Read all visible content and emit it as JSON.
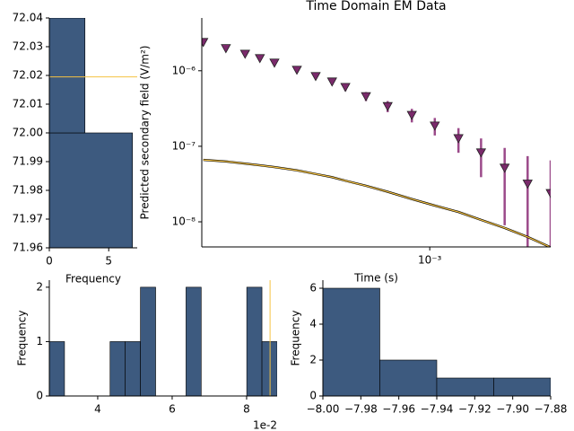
{
  "chart_data": [
    {
      "type": "histogram",
      "orientation": "horizontal",
      "bins": [
        71.96,
        72.0,
        72.04
      ],
      "counts": [
        7,
        3
      ],
      "color": "#3d5a7f",
      "xlim": [
        0,
        7.4
      ],
      "xticks": [
        0,
        5
      ],
      "ylim": [
        71.96,
        72.04
      ],
      "yticks": [
        71.96,
        71.97,
        71.98,
        71.99,
        {
          "value": 72,
          "label": "72.00"
        },
        72.01,
        72.02,
        72.03,
        72.04
      ],
      "xlabel": "Frequency",
      "reference_line": {
        "value": 72.0195,
        "color": "#f5c242"
      }
    },
    {
      "type": "line",
      "title": "Time Domain EM Data",
      "xlabel": "Time (s)",
      "ylabel": "Predicted secondary field (V/m²)",
      "log_x": true,
      "log_y": true,
      "x": [
        0.000172,
        0.000205,
        0.000238,
        0.000267,
        0.000299,
        0.000356,
        0.000412,
        0.000468,
        0.000519,
        0.000609,
        0.000721,
        0.00087,
        0.00104,
        0.00125,
        0.00149,
        0.00179,
        0.00214,
        0.00256
      ],
      "series": [
        {
          "color": "#7a2a6b",
          "error_color": "#9b4a8a",
          "marker": "triangle-down",
          "values": [
            2.4e-06,
            1.99e-06,
            1.68e-06,
            1.47e-06,
            1.28e-06,
            1.03e-06,
            8.5e-07,
            7.2e-07,
            6.1e-07,
            4.6e-07,
            3.4e-07,
            2.6e-07,
            1.88e-07,
            1.28e-07,
            8.3e-08,
            5.2e-08,
            3.2e-08,
            2.4e-08
          ],
          "errors": [
            1.6e-07,
            1.4e-07,
            1.24e-07,
            1.14e-07,
            1.04e-07,
            9.2e-08,
            8.3e-08,
            7.6e-08,
            7.1e-08,
            6.3e-08,
            5.7e-08,
            5.3e-08,
            4.9e-08,
            4.6e-08,
            4.4e-08,
            4.3e-08,
            4.2e-08,
            4.1e-08
          ]
        },
        {
          "color": "#f5c242",
          "values": [
            6.6e-08,
            6.3e-08,
            5.9e-08,
            5.6e-08,
            5.3e-08,
            4.8e-08,
            4.3e-08,
            3.9e-08,
            3.5e-08,
            3e-08,
            2.5e-08,
            2e-08,
            1.64e-08,
            1.35e-08,
            1.06e-08,
            8.3e-09,
            6.3e-09,
            4.6e-09
          ]
        }
      ],
      "xlim": [
        0.00017,
        0.00256
      ],
      "xticks": [
        {
          "value": 0.001,
          "label": "10⁻³"
        }
      ],
      "ylim": [
        4.65e-09,
        5e-06
      ],
      "yticks": [
        {
          "value": 1e-08,
          "label": "10⁻⁸"
        },
        {
          "value": 1e-07,
          "label": "10⁻⁷"
        },
        {
          "value": 1e-06,
          "label": "10⁻⁶"
        }
      ]
    },
    {
      "type": "histogram",
      "orientation": "vertical",
      "bins": [
        0.027,
        0.03108,
        0.03516,
        0.03924,
        0.04332,
        0.0474,
        0.05148,
        0.05556,
        0.05964,
        0.06372,
        0.0678,
        0.07188,
        0.07596,
        0.08004,
        0.08412,
        0.0882
      ],
      "counts": [
        1,
        0,
        0,
        0,
        1,
        1,
        2,
        0,
        0,
        2,
        0,
        0,
        0,
        2,
        1
      ],
      "color": "#3d5a7f",
      "xlim": [
        0.027,
        0.0882
      ],
      "xticks": [
        {
          "value": 0.04,
          "label": "4"
        },
        {
          "value": 0.06,
          "label": "6"
        },
        {
          "value": 0.08,
          "label": "8"
        }
      ],
      "offset_text": "1e-2",
      "ylim": [
        0,
        2.13
      ],
      "yticks": [
        0,
        1,
        2
      ],
      "ylabel": "Frequency",
      "reference_line": {
        "value": 0.0863,
        "color": "#f5c242"
      }
    },
    {
      "type": "histogram",
      "orientation": "vertical",
      "bins": [
        -8.0,
        -7.97,
        -7.94,
        -7.91,
        -7.88
      ],
      "counts": [
        6,
        2,
        1,
        1
      ],
      "color": "#3d5a7f",
      "xlim": [
        -8.0,
        -7.88
      ],
      "xticks": [
        {
          "value": -8.0,
          "label": "−8.00"
        },
        {
          "value": -7.98,
          "label": "−7.98"
        },
        {
          "value": -7.96,
          "label": "−7.96"
        },
        {
          "value": -7.94,
          "label": "−7.94"
        },
        {
          "value": -7.92,
          "label": "−7.92"
        },
        {
          "value": -7.9,
          "label": "−7.90"
        },
        {
          "value": -7.88,
          "label": "−7.88"
        }
      ],
      "ylim": [
        0,
        6.45
      ],
      "yticks": [
        0,
        2,
        4,
        6
      ],
      "ylabel": "Frequency"
    }
  ]
}
